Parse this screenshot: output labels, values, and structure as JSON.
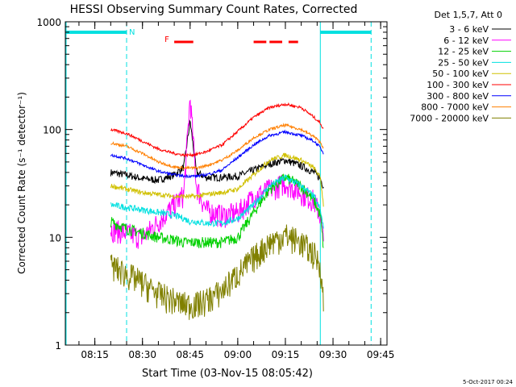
{
  "chart_data": {
    "type": "line",
    "title": "HESSI Observing Summary Count Rates, Corrected",
    "xlabel": "Start Time (03-Nov-15 08:05:42)",
    "ylabel": "Corrected Count Rate (s⁻¹ detector⁻¹)",
    "yscale": "log",
    "ylim": [
      1,
      1000
    ],
    "xlim": [
      "08:05:42",
      "09:47"
    ],
    "x_ticks": [
      "08:15",
      "08:30",
      "08:45",
      "09:00",
      "09:15",
      "09:30",
      "09:45"
    ],
    "y_ticks": [
      "1",
      "10",
      "100",
      "1000"
    ],
    "legend_header": "Det 1,5,7, Att 0",
    "legend_position": "top-right, outside plot",
    "footer_timestamp": "5-Oct-2017 00:24",
    "data_gap_start": "08:20",
    "data_gap_end": "09:27",
    "annotations": [
      {
        "label": "N",
        "time": "08:25",
        "color": "#00e0e0"
      },
      {
        "label": "F",
        "time": "08:39",
        "color": "#ff0000"
      }
    ],
    "night_bars": [
      {
        "start": "08:05:42",
        "end": "08:25",
        "y": 800
      },
      {
        "start": "09:26",
        "end": "09:42",
        "y": 800
      }
    ],
    "night_markers": [
      "08:25",
      "09:26",
      "09:42"
    ],
    "flare_bars": [
      {
        "start": "08:40",
        "end": "08:46",
        "y": 650
      },
      {
        "start": "09:05",
        "end": "09:09",
        "y": 650
      },
      {
        "start": "09:10",
        "end": "09:14",
        "y": 650
      },
      {
        "start": "09:16",
        "end": "09:19",
        "y": 650
      }
    ],
    "x": [
      "08:20",
      "08:25",
      "08:30",
      "08:35",
      "08:40",
      "08:43",
      "08:45",
      "08:47",
      "08:50",
      "08:55",
      "09:00",
      "09:05",
      "09:10",
      "09:15",
      "09:20",
      "09:24",
      "09:26",
      "09:27"
    ],
    "series": [
      {
        "name": "3 - 6 keV",
        "color": "#000000",
        "values": [
          40,
          38,
          35,
          34,
          38,
          45,
          120,
          40,
          36,
          36,
          37,
          42,
          48,
          52,
          46,
          40,
          35,
          30
        ]
      },
      {
        "name": "6 - 12 keV",
        "color": "#ff00ff",
        "values": [
          12,
          11,
          10,
          14,
          20,
          25,
          200,
          30,
          18,
          16,
          17,
          24,
          28,
          32,
          26,
          22,
          16,
          9
        ]
      },
      {
        "name": "12 - 25 keV",
        "color": "#00d000",
        "values": [
          14,
          12,
          11,
          10,
          9.5,
          9,
          9,
          9,
          9,
          9,
          10,
          17,
          28,
          36,
          30,
          22,
          16,
          8
        ]
      },
      {
        "name": "25 - 50 keV",
        "color": "#00e0e0",
        "values": [
          20,
          19,
          18,
          17,
          16,
          15,
          14,
          14,
          13.5,
          13.5,
          15,
          20,
          30,
          36,
          30,
          24,
          18,
          12
        ]
      },
      {
        "name": "50 - 100 keV",
        "color": "#d0c000",
        "values": [
          30,
          28,
          26,
          25,
          24,
          24,
          24,
          24,
          25,
          26,
          28,
          38,
          52,
          58,
          52,
          44,
          36,
          20
        ]
      },
      {
        "name": "100 - 300 keV",
        "color": "#ff0000",
        "values": [
          100,
          92,
          78,
          66,
          60,
          58,
          58,
          59,
          62,
          72,
          96,
          130,
          160,
          172,
          160,
          130,
          115,
          100
        ]
      },
      {
        "name": "300 - 800 keV",
        "color": "#0000ff",
        "values": [
          58,
          54,
          47,
          41,
          38,
          37,
          37,
          37,
          38,
          42,
          55,
          72,
          88,
          95,
          88,
          78,
          68,
          60
        ]
      },
      {
        "name": "800 - 7000 keV",
        "color": "#ff7f00",
        "values": [
          75,
          70,
          60,
          50,
          45,
          44,
          44,
          44,
          46,
          52,
          64,
          84,
          100,
          110,
          100,
          86,
          76,
          68
        ]
      },
      {
        "name": "7000 - 20000 keV",
        "color": "#808000",
        "values": [
          5.5,
          4.6,
          3.8,
          3.0,
          2.6,
          2.4,
          2.4,
          2.4,
          2.6,
          3.2,
          4.6,
          6.5,
          9,
          10.5,
          9,
          7,
          5.5,
          2.5
        ]
      }
    ]
  }
}
